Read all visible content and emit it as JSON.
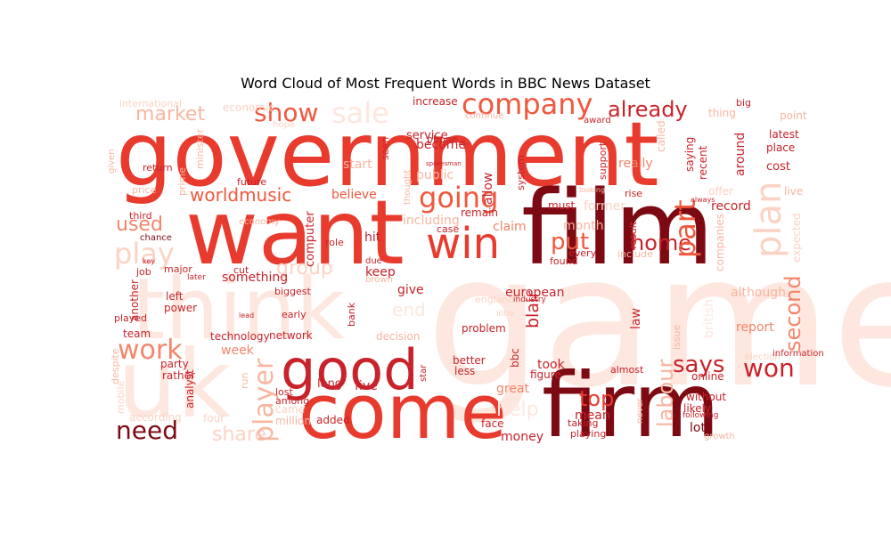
{
  "title": "Word Cloud of Most Frequent Words in BBC News Dataset",
  "colors": {
    "darkest": "#7d0a12",
    "dark": "#a81620",
    "red": "#c8232a",
    "bright": "#e83b2e",
    "mid": "#f0583d",
    "salmon": "#f3856a",
    "light": "#f8b5a0",
    "pale": "#fbd3c4",
    "palest": "#fde7de"
  },
  "words": [
    {
      "text": "game",
      "shade": "palest"
    },
    {
      "text": "government",
      "shade": "bright"
    },
    {
      "text": "film",
      "shade": "darkest"
    },
    {
      "text": "want",
      "shade": "bright"
    },
    {
      "text": "think",
      "shade": "palest"
    },
    {
      "text": "uk",
      "shade": "palest"
    },
    {
      "text": "firm",
      "shade": "darkest"
    },
    {
      "text": "come",
      "shade": "bright"
    },
    {
      "text": "good",
      "shade": "red"
    },
    {
      "text": "win",
      "shade": "bright"
    },
    {
      "text": "company",
      "shade": "mid"
    },
    {
      "text": "going",
      "shade": "mid"
    },
    {
      "text": "show",
      "shade": "mid"
    },
    {
      "text": "sale",
      "shade": "palest"
    },
    {
      "text": "already",
      "shade": "red"
    },
    {
      "text": "market",
      "shade": "light"
    },
    {
      "text": "worldmusic",
      "shade": "mid"
    },
    {
      "text": "used",
      "shade": "salmon"
    },
    {
      "text": "play",
      "shade": "pale"
    },
    {
      "text": "put",
      "shade": "mid"
    },
    {
      "text": "home",
      "shade": "red"
    },
    {
      "text": "part",
      "shade": "mid"
    },
    {
      "text": "plan",
      "shade": "pale"
    },
    {
      "text": "work",
      "shade": "salmon"
    },
    {
      "text": "need",
      "shade": "darkest"
    },
    {
      "text": "share",
      "shade": "pale"
    },
    {
      "text": "player",
      "shade": "light"
    },
    {
      "text": "says",
      "shade": "red"
    },
    {
      "text": "won",
      "shade": "red"
    },
    {
      "text": "second",
      "shade": "salmon"
    },
    {
      "text": "labour",
      "shade": "light"
    },
    {
      "text": "top",
      "shade": "bright"
    },
    {
      "text": "group",
      "shade": "pale"
    },
    {
      "text": "european",
      "shade": "red"
    },
    {
      "text": "report",
      "shade": "salmon"
    },
    {
      "text": "record",
      "shade": "red"
    },
    {
      "text": "thing",
      "shade": "light"
    },
    {
      "text": "believe",
      "shade": "mid"
    },
    {
      "text": "claim",
      "shade": "salmon"
    },
    {
      "text": "month",
      "shade": "light"
    },
    {
      "text": "including",
      "shade": "light"
    },
    {
      "text": "hit",
      "shade": "red"
    },
    {
      "text": "give",
      "shade": "red"
    },
    {
      "text": "end",
      "shade": "palest"
    },
    {
      "text": "help",
      "shade": "palest"
    },
    {
      "text": "mean",
      "shade": "red"
    },
    {
      "text": "lot",
      "shade": "darkest"
    },
    {
      "text": "great",
      "shade": "salmon"
    },
    {
      "text": "took",
      "shade": "red"
    },
    {
      "text": "likely",
      "shade": "red"
    },
    {
      "text": "week",
      "shade": "salmon"
    },
    {
      "text": "problem",
      "shade": "red"
    },
    {
      "text": "better",
      "shade": "red"
    },
    {
      "text": "less",
      "shade": "red"
    },
    {
      "text": "figure",
      "shade": "red"
    },
    {
      "text": "team",
      "shade": "red"
    },
    {
      "text": "party",
      "shade": "red"
    },
    {
      "text": "rather",
      "shade": "red"
    },
    {
      "text": "analyst",
      "shade": "red"
    },
    {
      "text": "another",
      "shade": "red"
    },
    {
      "text": "power",
      "shade": "red"
    },
    {
      "text": "left",
      "shade": "red"
    },
    {
      "text": "played",
      "shade": "red"
    },
    {
      "text": "job",
      "shade": "red"
    },
    {
      "text": "major",
      "shade": "red"
    },
    {
      "text": "chance",
      "shade": "darkest"
    },
    {
      "text": "third",
      "shade": "red"
    },
    {
      "text": "price",
      "shade": "light"
    },
    {
      "text": "return",
      "shade": "red"
    },
    {
      "text": "prime",
      "shade": "light"
    },
    {
      "text": "minister",
      "shade": "light"
    },
    {
      "text": "future",
      "shade": "red"
    },
    {
      "text": "economy",
      "shade": "light"
    },
    {
      "text": "start",
      "shade": "light"
    },
    {
      "text": "public",
      "shade": "light"
    },
    {
      "text": "become",
      "shade": "red"
    },
    {
      "text": "service",
      "shade": "red"
    },
    {
      "text": "increase",
      "shade": "red"
    },
    {
      "text": "continue",
      "shade": "light"
    },
    {
      "text": "award",
      "shade": "red"
    },
    {
      "text": "must",
      "shade": "red"
    },
    {
      "text": "former",
      "shade": "pale"
    },
    {
      "text": "remain",
      "shade": "red"
    },
    {
      "text": "case",
      "shade": "red"
    },
    {
      "text": "role",
      "shade": "red"
    },
    {
      "text": "due",
      "shade": "red"
    },
    {
      "text": "found",
      "shade": "red"
    },
    {
      "text": "every",
      "shade": "red"
    },
    {
      "text": "include",
      "shade": "light"
    },
    {
      "text": "result",
      "shade": "red"
    },
    {
      "text": "rise",
      "shade": "red"
    },
    {
      "text": "really",
      "shade": "salmon"
    },
    {
      "text": "around",
      "shade": "red"
    },
    {
      "text": "cost",
      "shade": "red"
    },
    {
      "text": "place",
      "shade": "red"
    },
    {
      "text": "latest",
      "shade": "red"
    },
    {
      "text": "point",
      "shade": "light"
    },
    {
      "text": "live",
      "shade": "light"
    },
    {
      "text": "offer",
      "shade": "pale"
    },
    {
      "text": "expected",
      "shade": "pale"
    },
    {
      "text": "companies",
      "shade": "light"
    },
    {
      "text": "recent",
      "shade": "red"
    },
    {
      "text": "saying",
      "shade": "red"
    },
    {
      "text": "called",
      "shade": "light"
    },
    {
      "text": "big",
      "shade": "red"
    },
    {
      "text": "international",
      "shade": "pale"
    },
    {
      "text": "economic",
      "shade": "pale"
    },
    {
      "text": "hope",
      "shade": "pale"
    },
    {
      "text": "phone",
      "shade": "red"
    },
    {
      "text": "seen",
      "shade": "red"
    },
    {
      "text": "allow",
      "shade": "red"
    },
    {
      "text": "system",
      "shade": "red"
    },
    {
      "text": "support",
      "shade": "red"
    },
    {
      "text": "thought",
      "shade": "light"
    },
    {
      "text": "computer",
      "shade": "red"
    },
    {
      "text": "england",
      "shade": "pale"
    },
    {
      "text": "blair",
      "shade": "red"
    },
    {
      "text": "law",
      "shade": "red"
    },
    {
      "text": "british",
      "shade": "palest"
    },
    {
      "text": "issue",
      "shade": "light"
    },
    {
      "text": "election",
      "shade": "pale"
    },
    {
      "text": "information",
      "shade": "red"
    },
    {
      "text": "online",
      "shade": "red"
    },
    {
      "text": "without",
      "shade": "red"
    },
    {
      "text": "never",
      "shade": "light"
    },
    {
      "text": "almost",
      "shade": "red"
    },
    {
      "text": "taking",
      "shade": "red"
    },
    {
      "text": "playing",
      "shade": "red"
    },
    {
      "text": "money",
      "shade": "red"
    },
    {
      "text": "face",
      "shade": "red"
    },
    {
      "text": "added",
      "shade": "red"
    },
    {
      "text": "million",
      "shade": "light"
    },
    {
      "text": "came",
      "shade": "pale"
    },
    {
      "text": "among",
      "shade": "red"
    },
    {
      "text": "lost",
      "shade": "red"
    },
    {
      "text": "long",
      "shade": "red"
    },
    {
      "text": "five",
      "shade": "red"
    },
    {
      "text": "star",
      "shade": "red"
    },
    {
      "text": "bbc",
      "shade": "red"
    },
    {
      "text": "decision",
      "shade": "light"
    },
    {
      "text": "network",
      "shade": "red"
    },
    {
      "text": "technology",
      "shade": "red"
    },
    {
      "text": "early",
      "shade": "red"
    },
    {
      "text": "bank",
      "shade": "red"
    },
    {
      "text": "biggest",
      "shade": "red"
    },
    {
      "text": "cut",
      "shade": "red"
    },
    {
      "text": "something",
      "shade": "red"
    },
    {
      "text": "keep",
      "shade": "red"
    },
    {
      "text": "brown",
      "shade": "light"
    },
    {
      "text": "four",
      "shade": "pale"
    },
    {
      "text": "according",
      "shade": "pale"
    },
    {
      "text": "mobile",
      "shade": "pale"
    },
    {
      "text": "despite",
      "shade": "light"
    },
    {
      "text": "run",
      "shade": "light"
    },
    {
      "text": "given",
      "shade": "light"
    },
    {
      "text": "following",
      "shade": "red"
    },
    {
      "text": "growth",
      "shade": "light"
    },
    {
      "text": "although",
      "shade": "light"
    },
    {
      "text": "industry",
      "shade": "red"
    },
    {
      "text": "little",
      "shade": "pale"
    },
    {
      "text": "club",
      "shade": "palest"
    },
    {
      "text": "later",
      "shade": "red"
    },
    {
      "text": "key",
      "shade": "red"
    },
    {
      "text": "lead",
      "shade": "red"
    },
    {
      "text": "spokesman",
      "shade": "red"
    },
    {
      "text": "always",
      "shade": "red"
    },
    {
      "text": "looking",
      "shade": "light"
    },
    {
      "text": "consumer",
      "shade": "light"
    },
    {
      "text": "went",
      "shade": "red"
    },
    {
      "text": "sold",
      "shade": "pale"
    }
  ]
}
